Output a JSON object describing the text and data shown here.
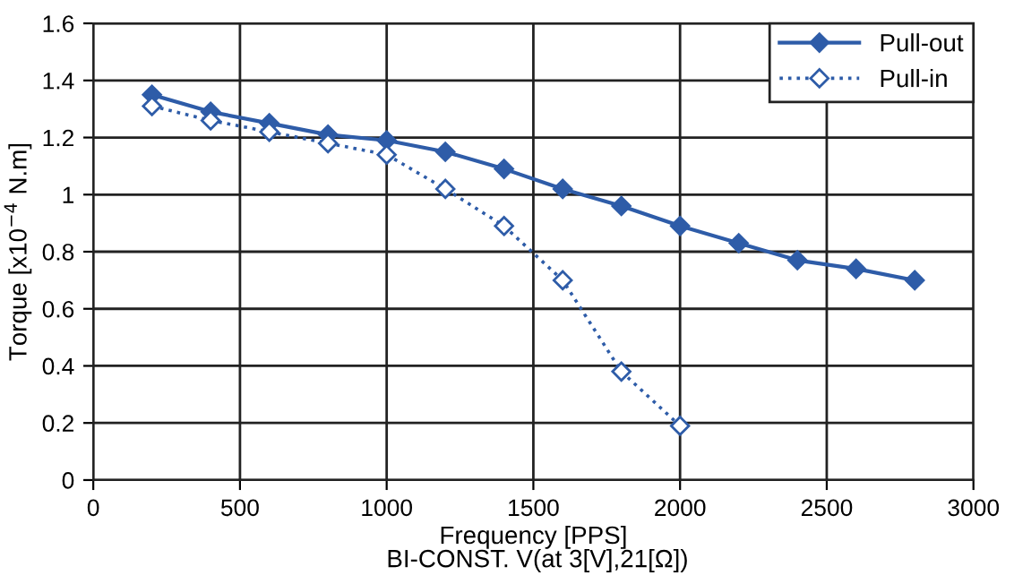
{
  "chart_data": {
    "type": "line",
    "xlabel": "Frequency [PPS]",
    "ylabel": "Torque [x10$^{−4}$ N.m]",
    "annotations": [
      "BI-CONST. V(at 3[V],21[Ω])"
    ],
    "xlim": [
      0,
      3000
    ],
    "xticks": [
      0,
      500,
      1000,
      1500,
      2000,
      2500,
      3000
    ],
    "ylim": [
      0,
      1.6
    ],
    "yticks": [
      0,
      0.2,
      0.4,
      0.6,
      0.8,
      1,
      1.2,
      1.4,
      1.6
    ],
    "grid": true,
    "legend": "top right",
    "marker": "diamond",
    "series": [
      {
        "name": "Pull-out",
        "color": "#2e5ca8",
        "line_style": "solid",
        "x": [
          200,
          400,
          600,
          800,
          1000,
          1200,
          1400,
          1600,
          1800,
          2000,
          2200,
          2400,
          2600,
          2800
        ],
        "values": [
          1.35,
          1.29,
          1.25,
          1.21,
          1.19,
          1.15,
          1.09,
          1.02,
          0.96,
          0.89,
          0.83,
          0.77,
          0.74,
          0.7
        ]
      },
      {
        "name": "Pull-in",
        "color": "#2e5ca8",
        "line_style": "dotted",
        "x": [
          200,
          400,
          600,
          800,
          1000,
          1200,
          1400,
          1600,
          1800,
          2000
        ],
        "values": [
          1.31,
          1.26,
          1.22,
          1.18,
          1.14,
          1.02,
          0.89,
          0.7,
          0.38,
          0.19
        ]
      }
    ]
  }
}
